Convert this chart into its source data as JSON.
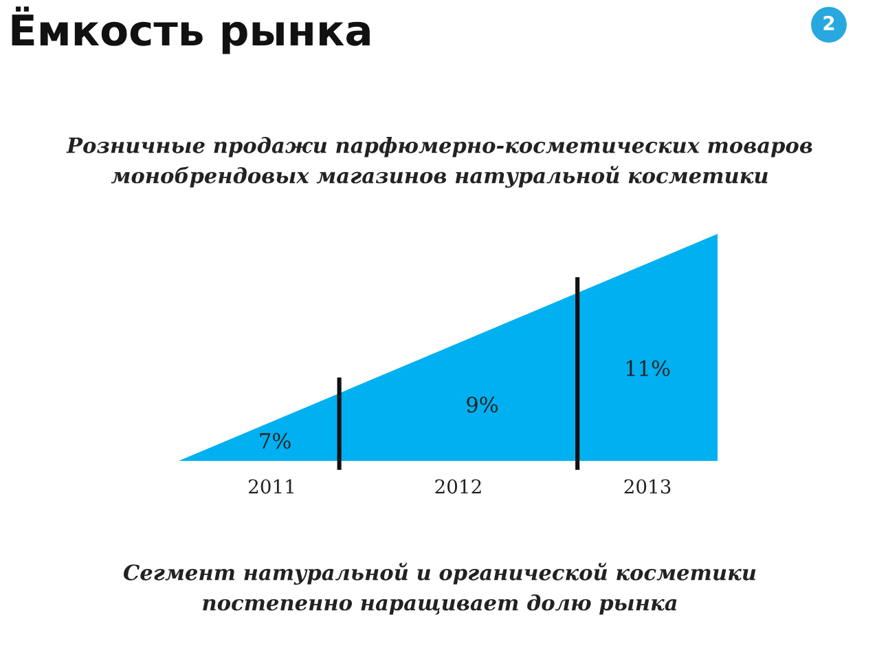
{
  "chart_data": {
    "type": "other",
    "title": "Ёмкость рынка",
    "subtitle": "Розничные продажи парфюмерно-косметических товаров\nмонобрендовых магазинов натуральной косметики",
    "categories": [
      "2011",
      "2012",
      "2013"
    ],
    "values": [
      7,
      9,
      11
    ],
    "value_labels": [
      "7%",
      "9%",
      "11%"
    ],
    "color": "#00b0f0",
    "annotations": [
      "Сегмент натуральной и органической косметики\nпостепенно наращивает долю рынка",
      "2"
    ]
  }
}
